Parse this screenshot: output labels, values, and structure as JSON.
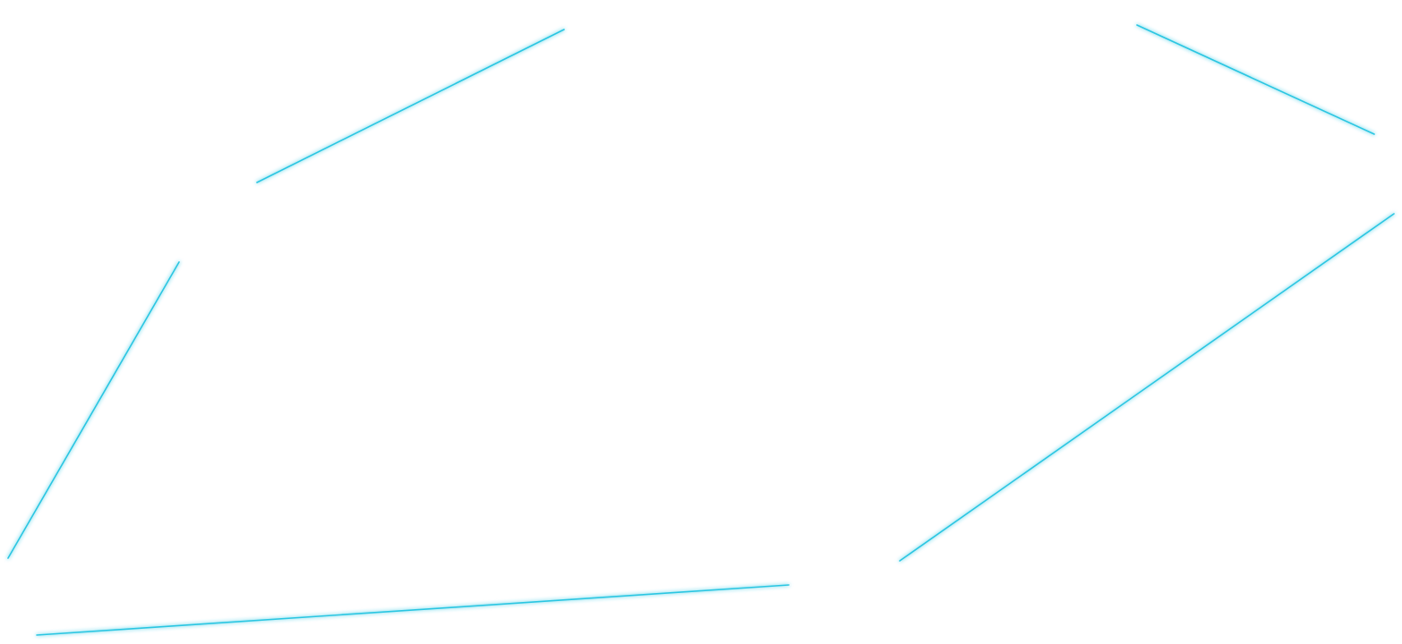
{
  "theme": {
    "line_color": "#2cc6e2",
    "glow_color": "#a8ecf7",
    "background": "#ffffff"
  },
  "segments_count_note": "",
  "segments": [
    {
      "id": "top"
    },
    {
      "id": "top-right"
    },
    {
      "id": "right-diagonal"
    },
    {
      "id": "bottom"
    },
    {
      "id": "left-diagonal"
    },
    {
      "id": "top-left"
    }
  ]
}
